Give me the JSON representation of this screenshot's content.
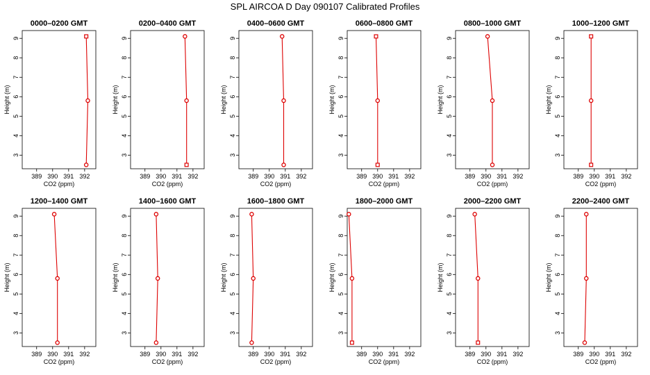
{
  "figure": {
    "title": "SPL AIRCOA D  Day 090107  Calibrated Profiles",
    "profile_color": "#dd0000"
  },
  "chart_data": [
    {
      "type": "line",
      "title": "0000–0200 GMT",
      "xlabel": "CO2 (ppm)",
      "ylabel": "Height (m)",
      "xticks": [
        389,
        390,
        391,
        392
      ],
      "yticks": [
        3,
        4,
        5,
        6,
        7,
        8,
        9
      ],
      "xlim": [
        388.1,
        392.7
      ],
      "ylim": [
        2.3,
        9.4
      ],
      "grid": false,
      "series": [
        {
          "points": [
            {
              "x": 392.1,
              "y": 9.1,
              "marker": "square"
            },
            {
              "x": 392.2,
              "y": 5.8,
              "marker": "circle"
            },
            {
              "x": 392.1,
              "y": 2.5,
              "marker": "circle"
            }
          ]
        }
      ]
    },
    {
      "type": "line",
      "title": "0200–0400 GMT",
      "xlabel": "CO2 (ppm)",
      "ylabel": "Height (m)",
      "xticks": [
        389,
        390,
        391,
        392
      ],
      "yticks": [
        3,
        4,
        5,
        6,
        7,
        8,
        9
      ],
      "xlim": [
        388.1,
        392.7
      ],
      "ylim": [
        2.3,
        9.4
      ],
      "grid": false,
      "series": [
        {
          "points": [
            {
              "x": 391.5,
              "y": 9.1,
              "marker": "circle"
            },
            {
              "x": 391.6,
              "y": 5.8,
              "marker": "circle"
            },
            {
              "x": 391.6,
              "y": 2.5,
              "marker": "square"
            }
          ]
        }
      ]
    },
    {
      "type": "line",
      "title": "0400–0600 GMT",
      "xlabel": "CO2 (ppm)",
      "ylabel": "Height (m)",
      "xticks": [
        389,
        390,
        391,
        392
      ],
      "yticks": [
        3,
        4,
        5,
        6,
        7,
        8,
        9
      ],
      "xlim": [
        388.1,
        392.7
      ],
      "ylim": [
        2.3,
        9.4
      ],
      "grid": false,
      "series": [
        {
          "points": [
            {
              "x": 390.8,
              "y": 9.1,
              "marker": "circle"
            },
            {
              "x": 390.9,
              "y": 5.8,
              "marker": "circle"
            },
            {
              "x": 390.9,
              "y": 2.5,
              "marker": "circle"
            }
          ]
        }
      ]
    },
    {
      "type": "line",
      "title": "0600–0800 GMT",
      "xlabel": "CO2 (ppm)",
      "ylabel": "Height (m)",
      "xticks": [
        389,
        390,
        391,
        392
      ],
      "yticks": [
        3,
        4,
        5,
        6,
        7,
        8,
        9
      ],
      "xlim": [
        388.1,
        392.7
      ],
      "ylim": [
        2.3,
        9.4
      ],
      "grid": false,
      "series": [
        {
          "points": [
            {
              "x": 389.9,
              "y": 9.1,
              "marker": "square"
            },
            {
              "x": 390.0,
              "y": 5.8,
              "marker": "circle"
            },
            {
              "x": 390.0,
              "y": 2.5,
              "marker": "square"
            }
          ]
        }
      ]
    },
    {
      "type": "line",
      "title": "0800–1000 GMT",
      "xlabel": "CO2 (ppm)",
      "ylabel": "Height (m)",
      "xticks": [
        389,
        390,
        391,
        392
      ],
      "yticks": [
        3,
        4,
        5,
        6,
        7,
        8,
        9
      ],
      "xlim": [
        388.1,
        392.7
      ],
      "ylim": [
        2.3,
        9.4
      ],
      "grid": false,
      "series": [
        {
          "points": [
            {
              "x": 390.1,
              "y": 9.1,
              "marker": "circle"
            },
            {
              "x": 390.4,
              "y": 5.8,
              "marker": "circle"
            },
            {
              "x": 390.4,
              "y": 2.5,
              "marker": "circle"
            }
          ]
        }
      ]
    },
    {
      "type": "line",
      "title": "1000–1200 GMT",
      "xlabel": "CO2 (ppm)",
      "ylabel": "Height (m)",
      "xticks": [
        389,
        390,
        391,
        392
      ],
      "yticks": [
        3,
        4,
        5,
        6,
        7,
        8,
        9
      ],
      "xlim": [
        388.1,
        392.7
      ],
      "ylim": [
        2.3,
        9.4
      ],
      "grid": false,
      "series": [
        {
          "points": [
            {
              "x": 389.8,
              "y": 9.1,
              "marker": "square"
            },
            {
              "x": 389.8,
              "y": 5.8,
              "marker": "circle"
            },
            {
              "x": 389.8,
              "y": 2.5,
              "marker": "square"
            }
          ]
        }
      ]
    },
    {
      "type": "line",
      "title": "1200–1400 GMT",
      "xlabel": "CO2 (ppm)",
      "ylabel": "Height (m)",
      "xticks": [
        389,
        390,
        391,
        392
      ],
      "yticks": [
        3,
        4,
        5,
        6,
        7,
        8,
        9
      ],
      "xlim": [
        388.1,
        392.7
      ],
      "ylim": [
        2.3,
        9.4
      ],
      "grid": false,
      "series": [
        {
          "points": [
            {
              "x": 390.1,
              "y": 9.1,
              "marker": "circle"
            },
            {
              "x": 390.3,
              "y": 5.8,
              "marker": "circle"
            },
            {
              "x": 390.3,
              "y": 2.5,
              "marker": "circle"
            }
          ]
        }
      ]
    },
    {
      "type": "line",
      "title": "1400–1600 GMT",
      "xlabel": "CO2 (ppm)",
      "ylabel": "Height (m)",
      "xticks": [
        389,
        390,
        391,
        392
      ],
      "yticks": [
        3,
        4,
        5,
        6,
        7,
        8,
        9
      ],
      "xlim": [
        388.1,
        392.7
      ],
      "ylim": [
        2.3,
        9.4
      ],
      "grid": false,
      "series": [
        {
          "points": [
            {
              "x": 389.7,
              "y": 9.1,
              "marker": "circle"
            },
            {
              "x": 389.8,
              "y": 5.8,
              "marker": "circle"
            },
            {
              "x": 389.7,
              "y": 2.5,
              "marker": "circle"
            }
          ]
        }
      ]
    },
    {
      "type": "line",
      "title": "1600–1800 GMT",
      "xlabel": "CO2 (ppm)",
      "ylabel": "Height (m)",
      "xticks": [
        389,
        390,
        391,
        392
      ],
      "yticks": [
        3,
        4,
        5,
        6,
        7,
        8,
        9
      ],
      "xlim": [
        388.1,
        392.7
      ],
      "ylim": [
        2.3,
        9.4
      ],
      "grid": false,
      "series": [
        {
          "points": [
            {
              "x": 388.9,
              "y": 9.1,
              "marker": "circle"
            },
            {
              "x": 389.0,
              "y": 5.8,
              "marker": "circle"
            },
            {
              "x": 388.9,
              "y": 2.5,
              "marker": "circle"
            }
          ]
        }
      ]
    },
    {
      "type": "line",
      "title": "1800–2000 GMT",
      "xlabel": "CO2 (ppm)",
      "ylabel": "Height (m)",
      "xticks": [
        389,
        390,
        391,
        392
      ],
      "yticks": [
        3,
        4,
        5,
        6,
        7,
        8,
        9
      ],
      "xlim": [
        388.1,
        392.7
      ],
      "ylim": [
        2.3,
        9.4
      ],
      "grid": false,
      "series": [
        {
          "points": [
            {
              "x": 388.2,
              "y": 9.1,
              "marker": "circle"
            },
            {
              "x": 388.4,
              "y": 5.8,
              "marker": "circle"
            },
            {
              "x": 388.4,
              "y": 2.5,
              "marker": "square"
            }
          ]
        }
      ]
    },
    {
      "type": "line",
      "title": "2000–2200 GMT",
      "xlabel": "CO2 (ppm)",
      "ylabel": "Height (m)",
      "xticks": [
        389,
        390,
        391,
        392
      ],
      "yticks": [
        3,
        4,
        5,
        6,
        7,
        8,
        9
      ],
      "xlim": [
        388.1,
        392.7
      ],
      "ylim": [
        2.3,
        9.4
      ],
      "grid": false,
      "series": [
        {
          "points": [
            {
              "x": 389.3,
              "y": 9.1,
              "marker": "circle"
            },
            {
              "x": 389.5,
              "y": 5.8,
              "marker": "circle"
            },
            {
              "x": 389.5,
              "y": 2.5,
              "marker": "square"
            }
          ]
        }
      ]
    },
    {
      "type": "line",
      "title": "2200–2400 GMT",
      "xlabel": "CO2 (ppm)",
      "ylabel": "Height (m)",
      "xticks": [
        389,
        390,
        391,
        392
      ],
      "yticks": [
        3,
        4,
        5,
        6,
        7,
        8,
        9
      ],
      "xlim": [
        388.1,
        392.7
      ],
      "ylim": [
        2.3,
        9.4
      ],
      "grid": false,
      "series": [
        {
          "points": [
            {
              "x": 389.5,
              "y": 9.1,
              "marker": "circle"
            },
            {
              "x": 389.5,
              "y": 5.8,
              "marker": "circle"
            },
            {
              "x": 389.4,
              "y": 2.5,
              "marker": "circle"
            }
          ]
        }
      ]
    }
  ]
}
